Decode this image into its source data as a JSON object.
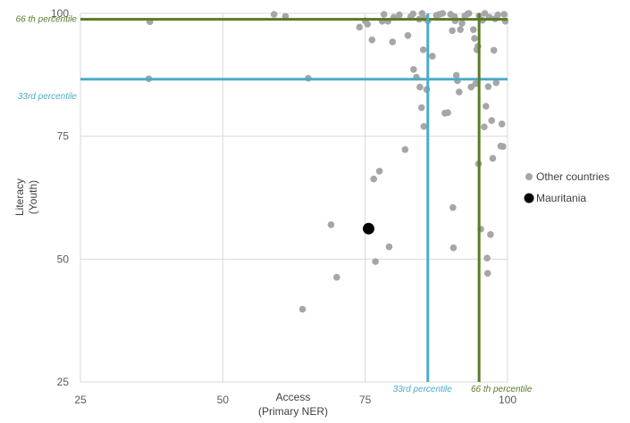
{
  "chart_data": {
    "type": "scatter",
    "xlabel_line1": "Access",
    "xlabel_line2": "(Primary NER)",
    "ylabel_line1": "Literacy",
    "ylabel_line2": "(Youth)",
    "xlim": [
      25,
      100
    ],
    "ylim": [
      25,
      100
    ],
    "x_ticks": [
      25,
      50,
      75,
      100
    ],
    "y_ticks": [
      25,
      50,
      75,
      100
    ],
    "grid": true,
    "legend_position": "right",
    "colors": {
      "others": "#a6a6a6",
      "highlight": "#000000",
      "p33": "#4bacc6",
      "p66": "#5a7a2a",
      "grid": "#d9d9d9"
    },
    "reference_lines": [
      {
        "axis": "y",
        "value": 86.6,
        "label": "33rd percentile",
        "color": "#4bacc6"
      },
      {
        "axis": "y",
        "value": 98.8,
        "label": "66 th percentile",
        "color": "#5a7a2a"
      },
      {
        "axis": "x",
        "value": 86.0,
        "label": "33rd percentile",
        "color": "#4bacc6"
      },
      {
        "axis": "x",
        "value": 95.0,
        "label": "66 th percentile",
        "color": "#5a7a2a"
      }
    ],
    "series": [
      {
        "name": "Other countries",
        "color": "#a6a6a6",
        "points": [
          [
            37.2,
            98.3
          ],
          [
            37.0,
            86.7
          ],
          [
            59.0,
            99.8
          ],
          [
            61.0,
            99.4
          ],
          [
            65.0,
            86.8
          ],
          [
            64.0,
            39.8
          ],
          [
            69.0,
            57.0
          ],
          [
            70.0,
            46.3
          ],
          [
            74.0,
            97.2
          ],
          [
            75.0,
            98.5
          ],
          [
            75.4,
            97.8
          ],
          [
            76.2,
            94.6
          ],
          [
            76.5,
            66.3
          ],
          [
            76.8,
            49.5
          ],
          [
            77.5,
            67.9
          ],
          [
            78.0,
            98.4
          ],
          [
            78.3,
            99.8
          ],
          [
            79.0,
            98.4
          ],
          [
            79.2,
            52.5
          ],
          [
            79.8,
            94.2
          ],
          [
            80.0,
            99.2
          ],
          [
            81.0,
            99.7
          ],
          [
            82.0,
            72.3
          ],
          [
            82.5,
            95.5
          ],
          [
            83.0,
            99.3
          ],
          [
            83.4,
            99.9
          ],
          [
            83.5,
            88.6
          ],
          [
            84.0,
            87.0
          ],
          [
            84.5,
            98.8
          ],
          [
            84.6,
            85.0
          ],
          [
            84.9,
            80.8
          ],
          [
            85.0,
            100.0
          ],
          [
            85.2,
            92.6
          ],
          [
            85.3,
            77.0
          ],
          [
            85.5,
            99.0
          ],
          [
            85.8,
            84.5
          ],
          [
            86.0,
            98.5
          ],
          [
            86.8,
            91.3
          ],
          [
            87.5,
            99.6
          ],
          [
            88.0,
            99.8
          ],
          [
            88.6,
            100.0
          ],
          [
            89.0,
            79.7
          ],
          [
            89.5,
            79.8
          ],
          [
            90.0,
            99.8
          ],
          [
            90.3,
            96.5
          ],
          [
            90.4,
            60.5
          ],
          [
            90.5,
            52.3
          ],
          [
            90.7,
            99.3
          ],
          [
            90.8,
            98.5
          ],
          [
            91.0,
            87.4
          ],
          [
            91.2,
            86.3
          ],
          [
            91.5,
            84.0
          ],
          [
            91.7,
            96.7
          ],
          [
            92.0,
            98.0
          ],
          [
            92.5,
            99.5
          ],
          [
            93.0,
            99.9
          ],
          [
            93.2,
            100.0
          ],
          [
            93.6,
            85.0
          ],
          [
            94.0,
            96.7
          ],
          [
            94.2,
            94.9
          ],
          [
            94.4,
            85.7
          ],
          [
            94.6,
            92.6
          ],
          [
            94.8,
            93.3
          ],
          [
            94.9,
            69.4
          ],
          [
            95.0,
            99.5
          ],
          [
            95.3,
            56.1
          ],
          [
            95.6,
            98.6
          ],
          [
            95.9,
            76.9
          ],
          [
            96.0,
            100.0
          ],
          [
            96.2,
            81.1
          ],
          [
            96.4,
            50.2
          ],
          [
            96.5,
            47.1
          ],
          [
            96.6,
            85.1
          ],
          [
            96.8,
            99.2
          ],
          [
            97.0,
            55.0
          ],
          [
            97.2,
            78.2
          ],
          [
            97.4,
            70.5
          ],
          [
            97.6,
            92.5
          ],
          [
            97.8,
            98.9
          ],
          [
            98.0,
            85.9
          ],
          [
            98.3,
            99.7
          ],
          [
            98.8,
            73.0
          ],
          [
            99.0,
            77.5
          ],
          [
            99.2,
            72.9
          ],
          [
            99.4,
            99.8
          ],
          [
            99.6,
            98.4
          ]
        ]
      },
      {
        "name": "Mauritania",
        "color": "#000000",
        "points": [
          [
            75.6,
            56.2
          ]
        ]
      }
    ]
  }
}
